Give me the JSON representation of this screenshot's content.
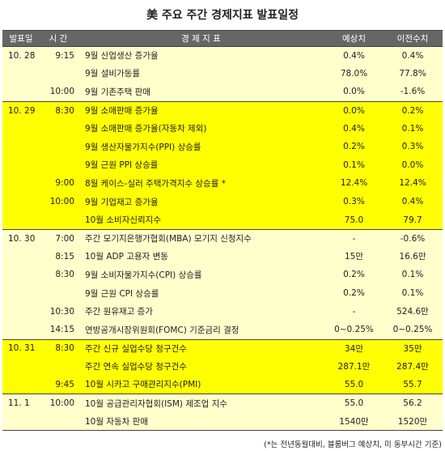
{
  "title": "美 주요 주간 경제지표 발표일정",
  "headers": {
    "date": "발표일",
    "time": "시 간",
    "name": "경 제 지 표",
    "forecast": "예상치",
    "previous": "이전수치"
  },
  "rows": [
    {
      "date": "10. 28",
      "time": "9:15",
      "name": "9월 산업생산 증가율",
      "forecast": "0.4%",
      "previous": "0.4%"
    },
    {
      "date": "",
      "time": "",
      "name": "9월 설비가동률",
      "forecast": "78.0%",
      "previous": "77.8%"
    },
    {
      "date": "",
      "time": "10:00",
      "name": "9월 기존주택 판매",
      "forecast": "0.0%",
      "previous": "-1.6%"
    },
    {
      "date": "10. 29",
      "time": "8:30",
      "name": "9월 소매판매 증가율",
      "forecast": "0.0%",
      "previous": "0.2%"
    },
    {
      "date": "",
      "time": "",
      "name": "9월 소매판매 증가율(자동차 제외)",
      "forecast": "0.4%",
      "previous": "0.1%"
    },
    {
      "date": "",
      "time": "",
      "name": "9월 생산자물가지수(PPI) 상승률",
      "forecast": "0.2%",
      "previous": "0.3%"
    },
    {
      "date": "",
      "time": "",
      "name": "9월 근원 PPI 상승률",
      "forecast": "0.1%",
      "previous": "0.0%"
    },
    {
      "date": "",
      "time": "9:00",
      "name": "8월 케이스-실러 주택가격지수 상승률 *",
      "forecast": "12.4%",
      "previous": "12.4%"
    },
    {
      "date": "",
      "time": "10:00",
      "name": "9월 기업재고 증가율",
      "forecast": "0.3%",
      "previous": "0.4%"
    },
    {
      "date": "",
      "time": "",
      "name": "10월 소비자신뢰지수",
      "forecast": "75.0",
      "previous": "79.7"
    },
    {
      "date": "10. 30",
      "time": "7:00",
      "name": "주간 모기지은행가협회(MBA) 모기지 신청지수",
      "forecast": "-",
      "previous": "-0.6%"
    },
    {
      "date": "",
      "time": "8:15",
      "name": "10월 ADP 고용자 변동",
      "forecast": "15만",
      "previous": "16.6만"
    },
    {
      "date": "",
      "time": "8:30",
      "name": "9월 소비자물가지수(CPI) 상승률",
      "forecast": "0.2%",
      "previous": "0.1%"
    },
    {
      "date": "",
      "time": "",
      "name": "9월 근원 CPI 상승률",
      "forecast": "0.2%",
      "previous": "0.1%"
    },
    {
      "date": "",
      "time": "10:30",
      "name": "주간 원유재고 증가",
      "forecast": "-",
      "previous": "524.6만"
    },
    {
      "date": "",
      "time": "14:15",
      "name": "연방공개시장위원회(FOMC) 기준금리 결정",
      "forecast": "0~0.25%",
      "previous": "0~0.25%"
    },
    {
      "date": "10. 31",
      "time": "8:30",
      "name": "주간 신규 실업수당 청구건수",
      "forecast": "34만",
      "previous": "35만"
    },
    {
      "date": "",
      "time": "",
      "name": "주간 연속 실업수당 청구건수",
      "forecast": "287.1만",
      "previous": "287.4만"
    },
    {
      "date": "",
      "time": "9:45",
      "name": "10월 시카고 구매관리지수(PMI)",
      "forecast": "55.0",
      "previous": "55.7"
    },
    {
      "date": "11. 1",
      "time": "10:00",
      "name": "10월 공급관리자협회(ISM) 제조업 지수",
      "forecast": "55.0",
      "previous": "56.2"
    },
    {
      "date": "",
      "time": "",
      "name": "10월 자동차 판매",
      "forecast": "1540만",
      "previous": "1520만"
    }
  ],
  "footnote": "(*는 전년동월대비, 블룸버그 예상치, 미 동부시간 기준)",
  "colors": {
    "header_bg": "#666666",
    "highlight": "#ffff00",
    "pale": "#ffffcc"
  }
}
